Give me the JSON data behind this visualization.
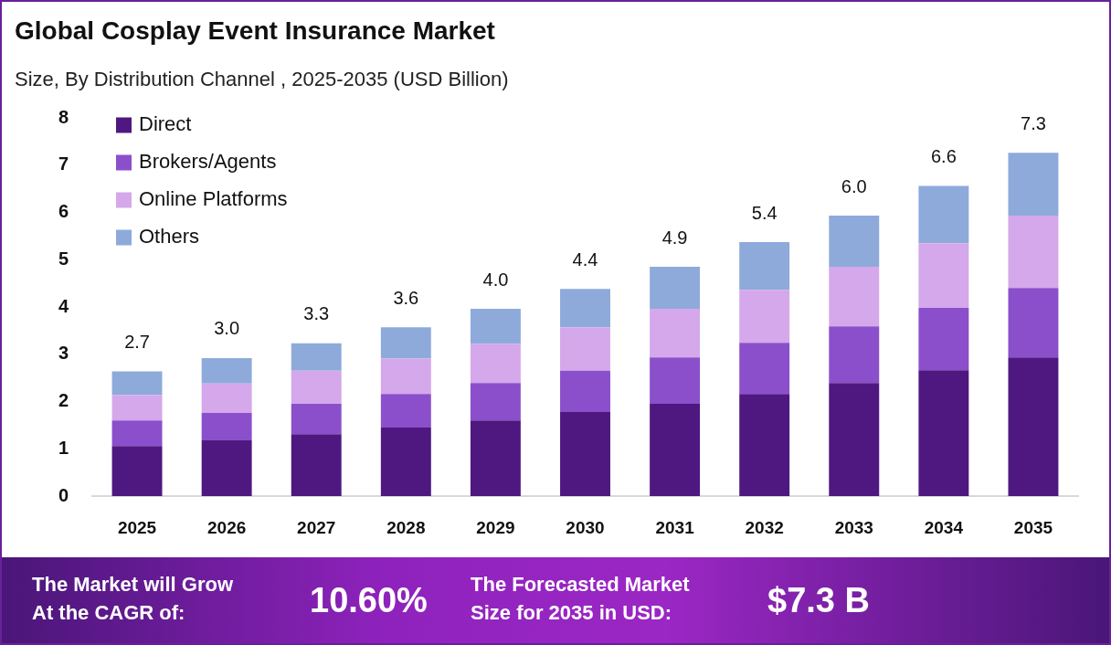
{
  "chart_data": {
    "type": "bar",
    "title": "Global Cosplay Event Insurance Market",
    "subtitle": "Size, By Distribution Channel , 2025-2035 (USD Billion)",
    "categories": [
      "2025",
      "2026",
      "2027",
      "2028",
      "2029",
      "2030",
      "2031",
      "2032",
      "2033",
      "2034",
      "2035"
    ],
    "stacked": true,
    "series": [
      {
        "name": "Direct",
        "color": "#4f1880",
        "values": [
          1.06,
          1.18,
          1.31,
          1.45,
          1.6,
          1.78,
          1.95,
          2.16,
          2.39,
          2.66,
          2.93
        ]
      },
      {
        "name": "Brokers/Agents",
        "color": "#8b4fcb",
        "values": [
          0.54,
          0.58,
          0.64,
          0.71,
          0.79,
          0.87,
          0.98,
          1.08,
          1.2,
          1.32,
          1.47
        ]
      },
      {
        "name": "Online Platforms",
        "color": "#d4a8ea",
        "values": [
          0.54,
          0.62,
          0.7,
          0.75,
          0.83,
          0.92,
          1.03,
          1.12,
          1.26,
          1.37,
          1.53
        ]
      },
      {
        "name": "Others",
        "color": "#8eaadb",
        "values": [
          0.5,
          0.54,
          0.58,
          0.66,
          0.74,
          0.81,
          0.89,
          1.01,
          1.08,
          1.21,
          1.33
        ]
      }
    ],
    "ylim": [
      0,
      8
    ],
    "yticks": [
      0,
      1,
      2,
      3,
      4,
      5,
      6,
      7,
      8
    ],
    "grid": false,
    "legend": "top left",
    "totals": [
      "2.7",
      "3.0",
      "3.3",
      "3.6",
      "4.0",
      "4.4",
      "4.9",
      "5.4",
      "6.0",
      "6.6",
      "7.3"
    ],
    "annotations": [
      "The Market will Grow At the CAGR of:",
      "10.60%",
      "The Forecasted Market Size for 2035 in USD:",
      "$7.3 B"
    ]
  }
}
